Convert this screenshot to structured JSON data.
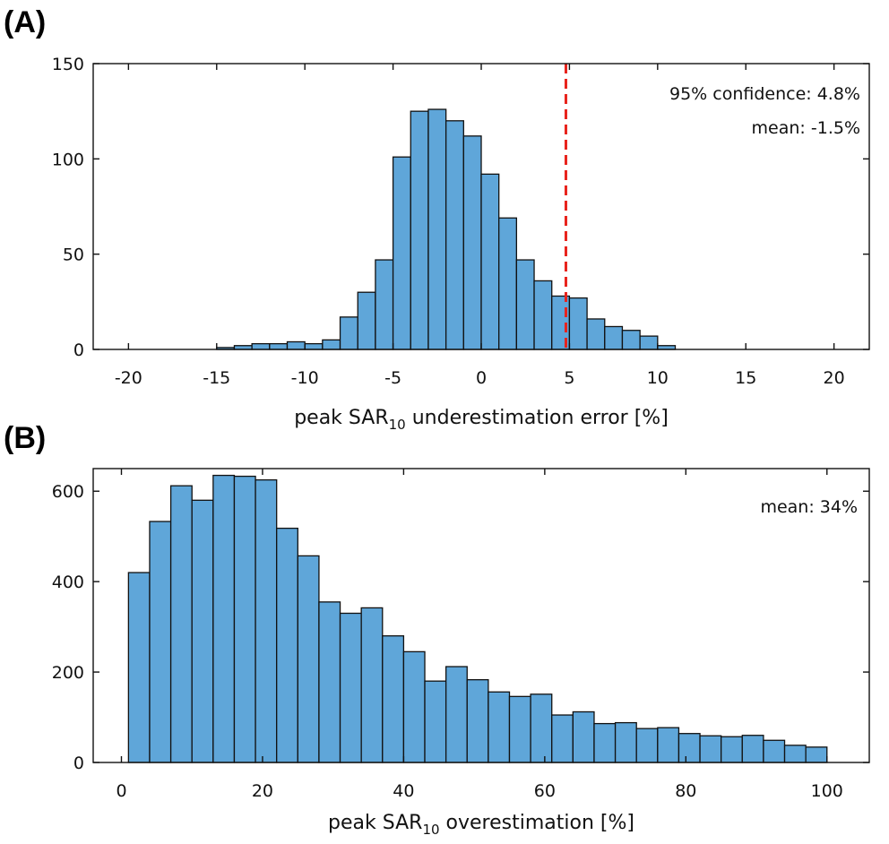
{
  "chart_data": [
    {
      "type": "bar",
      "panel_label": "(A)",
      "xlabel_prefix": "peak SAR",
      "xlabel_sub": "10",
      "xlabel_suffix": " underestimation error [%]",
      "xlim": [
        -22,
        22
      ],
      "ylim": [
        0,
        150
      ],
      "xticks": [
        -20,
        -15,
        -10,
        -5,
        0,
        5,
        10,
        15,
        20
      ],
      "yticks": [
        0,
        50,
        100,
        150
      ],
      "bin_width": 1,
      "bin_start": -20,
      "values": [
        0,
        0,
        0,
        0,
        0,
        1,
        2,
        3,
        3,
        4,
        3,
        5,
        17,
        30,
        47,
        101,
        125,
        126,
        120,
        112,
        92,
        69,
        47,
        36,
        28,
        27,
        16,
        12,
        10,
        7,
        2,
        0,
        0,
        0,
        0,
        0,
        0,
        0,
        0,
        0
      ],
      "bar_color": "#5fa6d9",
      "reference_line": {
        "x": 4.8,
        "color": "#e8231c",
        "style": "dashed"
      },
      "annotations": [
        "95% confidence: 4.8%",
        "mean: -1.5%"
      ],
      "legend": "none",
      "grid": false
    },
    {
      "type": "bar",
      "panel_label": "(B)",
      "xlabel_prefix": "peak SAR",
      "xlabel_sub": "10",
      "xlabel_suffix": " overestimation [%]",
      "xlim": [
        -4,
        106
      ],
      "ylim": [
        0,
        650
      ],
      "xticks": [
        0,
        20,
        40,
        60,
        80,
        100
      ],
      "yticks": [
        0,
        200,
        400,
        600
      ],
      "bin_width": 3,
      "bin_start": 1,
      "values": [
        420,
        533,
        612,
        580,
        635,
        633,
        625,
        518,
        457,
        355,
        330,
        342,
        280,
        245,
        180,
        212,
        183,
        156,
        146,
        151,
        105,
        112,
        86,
        88,
        75,
        77,
        64,
        59,
        57,
        60,
        49,
        38,
        34
      ],
      "bar_color": "#5fa6d9",
      "annotations": [
        "mean: 34%"
      ],
      "legend": "none",
      "grid": false
    }
  ]
}
